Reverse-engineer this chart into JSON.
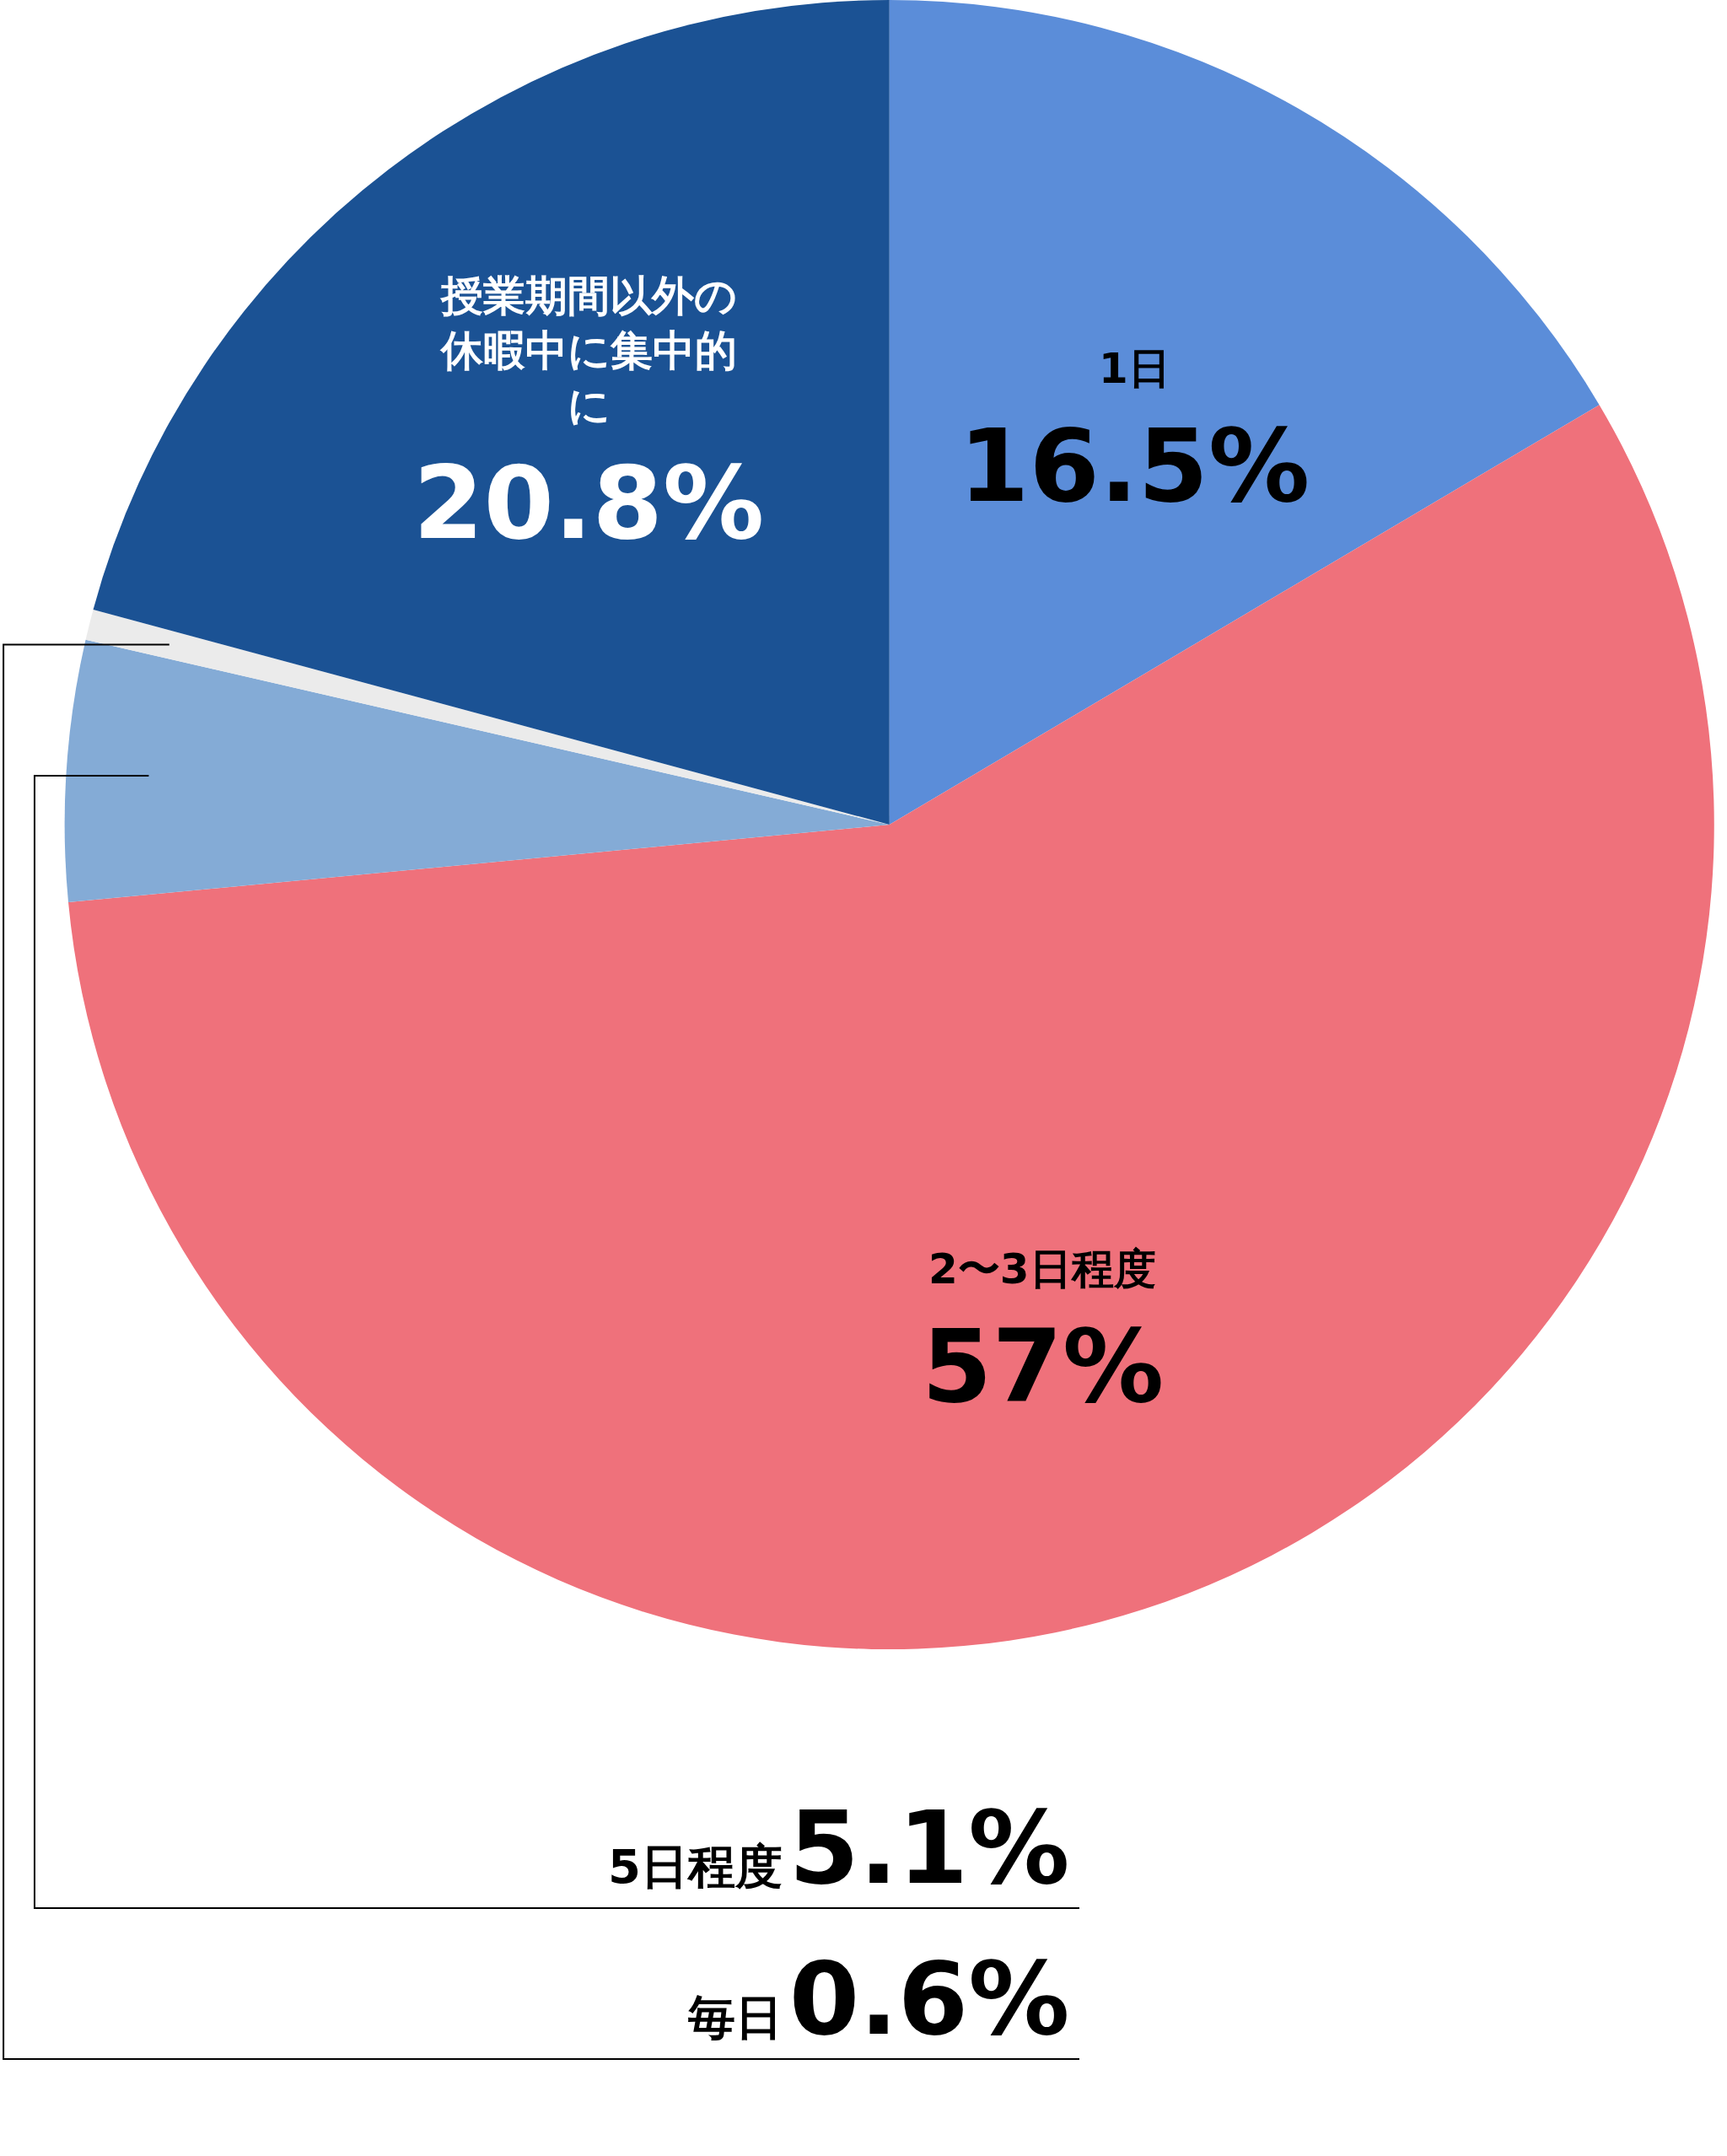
{
  "chart_data": {
    "type": "pie",
    "categories": [
      "1日",
      "2〜3日程度",
      "5日程度",
      "毎日",
      "授業期間以外の休暇中に集中的に"
    ],
    "values": [
      16.5,
      57,
      5.1,
      0.6,
      20.8
    ],
    "value_labels": [
      "16.5%",
      "57%",
      "5.1%",
      "0.6%",
      "20.8%"
    ],
    "colors": [
      "#5b8dd9",
      "#ef717b",
      "#84abd6",
      "#ebebeb",
      "#1b5294"
    ],
    "legend": false
  }
}
